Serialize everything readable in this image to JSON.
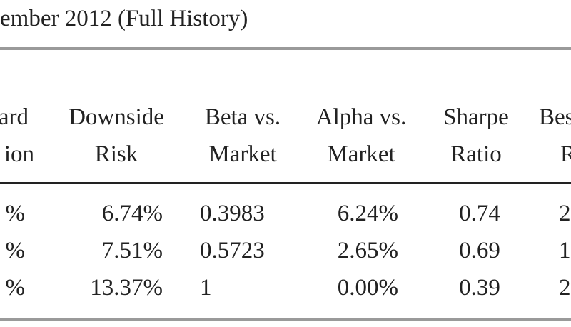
{
  "header": {
    "title": "ember 2012 (Full History)"
  },
  "table": {
    "columns": [
      [
        "ard",
        "ion"
      ],
      [
        "Downside",
        "Risk"
      ],
      [
        "Beta vs.",
        "Market"
      ],
      [
        "Alpha vs.",
        "Market"
      ],
      [
        "Sharpe",
        "Ratio"
      ],
      [
        "Bes",
        "R"
      ]
    ],
    "rows": [
      [
        "%",
        "6.74%",
        "0.3983",
        "6.24%",
        "0.74",
        "2"
      ],
      [
        "%",
        "7.51%",
        "0.5723",
        "2.65%",
        "0.69",
        "1"
      ],
      [
        "%",
        "13.37%",
        "1",
        "0.00%",
        "0.39",
        "2"
      ]
    ]
  }
}
